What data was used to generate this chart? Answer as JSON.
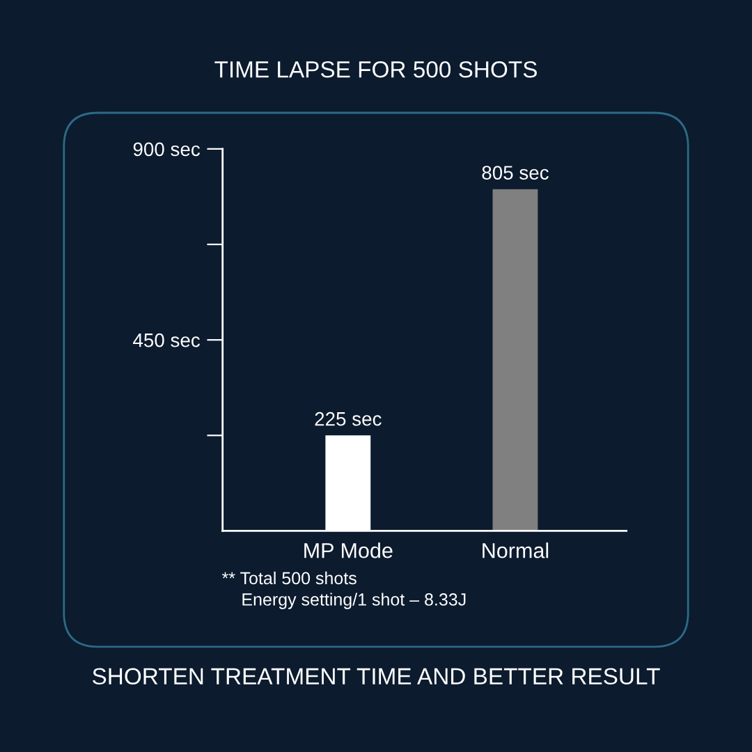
{
  "chart_data": {
    "type": "bar",
    "title": "TIME LAPSE FOR 500 SHOTS",
    "categories": [
      "MP Mode",
      "Normal"
    ],
    "values": [
      225,
      805
    ],
    "colors": [
      "#ffffff",
      "#808080"
    ],
    "value_labels": [
      "225 sec",
      "805 sec"
    ],
    "ylim": [
      0,
      900
    ],
    "yticks": [
      {
        "value": 225,
        "label": null
      },
      {
        "value": 450,
        "label": "450 sec"
      },
      {
        "value": 675,
        "label": null
      },
      {
        "value": 900,
        "label": "900 sec"
      }
    ],
    "grid": false,
    "legend": false,
    "annotations": [
      "** Total 500 shots\n    Energy setting/1 shot – 8.33J",
      "SHORTEN TREATMENT TIME AND BETTER RESULT"
    ]
  }
}
